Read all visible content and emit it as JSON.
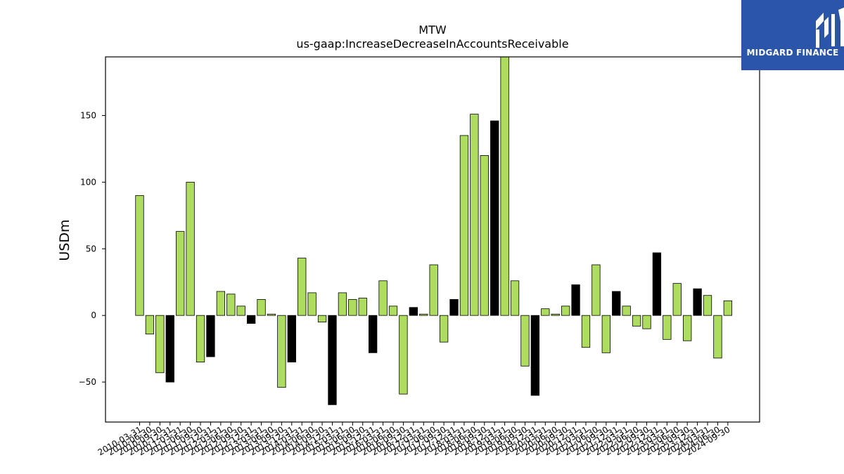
{
  "brand": {
    "name": "MIDGARD FINANCE",
    "logo_icon": "mh-monogram-icon",
    "bg_color": "#2a55a8"
  },
  "chart_data": {
    "type": "bar",
    "title": "MTW",
    "subtitle": "us-gaap:IncreaseDecreaseInAccountsReceivable",
    "xlabel": "",
    "ylabel": "USDm",
    "ylim": [
      -80,
      194
    ],
    "yticks": [
      -50,
      0,
      50,
      100,
      150
    ],
    "colors": {
      "default": "#addc5f",
      "highlight": "#000000"
    },
    "categories": [
      "2010-03-31",
      "2010-06-30",
      "2010-09-30",
      "2010-12-31",
      "2011-03-31",
      "2011-06-30",
      "2011-09-30",
      "2011-12-31",
      "2012-03-31",
      "2012-06-30",
      "2012-09-30",
      "2012-12-31",
      "2013-03-31",
      "2013-06-30",
      "2013-09-30",
      "2013-12-31",
      "2014-03-31",
      "2014-06-30",
      "2014-09-30",
      "2014-12-31",
      "2015-03-31",
      "2015-06-30",
      "2015-09-30",
      "2015-12-31",
      "2016-03-31",
      "2016-06-30",
      "2016-09-30",
      "2016-12-31",
      "2017-03-31",
      "2017-06-30",
      "2017-09-30",
      "2017-12-31",
      "2018-03-31",
      "2018-06-30",
      "2018-09-30",
      "2018-12-31",
      "2019-03-31",
      "2019-06-30",
      "2019-09-30",
      "2019-12-31",
      "2020-03-31",
      "2020-06-30",
      "2020-09-30",
      "2020-12-31",
      "2021-03-31",
      "2021-06-30",
      "2021-09-30",
      "2021-12-31",
      "2022-03-31",
      "2022-06-30",
      "2022-09-30",
      "2022-12-31",
      "2023-03-31",
      "2023-06-30",
      "2023-09-30",
      "2023-12-31",
      "2024-03-31",
      "2024-06-30",
      "2024-09-30"
    ],
    "values": [
      90,
      -14,
      -43,
      -50,
      63,
      100,
      -35,
      -31,
      18,
      16,
      7,
      -6,
      12,
      1,
      -54,
      -35,
      43,
      17,
      -5,
      -67,
      17,
      12,
      13,
      -28,
      26,
      7,
      -59,
      6,
      1,
      38,
      -20,
      12,
      135,
      151,
      120,
      146,
      194,
      26,
      -38,
      -60,
      5,
      1,
      7,
      23,
      -24,
      38,
      -28,
      18,
      7,
      -8,
      -10,
      47,
      -18,
      24,
      -19,
      20,
      15,
      -32,
      11
    ],
    "highlight": [
      false,
      false,
      false,
      true,
      false,
      false,
      false,
      true,
      false,
      false,
      false,
      true,
      false,
      false,
      false,
      true,
      false,
      false,
      false,
      true,
      false,
      false,
      false,
      true,
      false,
      false,
      false,
      true,
      false,
      false,
      false,
      true,
      false,
      false,
      false,
      true,
      false,
      false,
      false,
      true,
      false,
      false,
      false,
      true,
      false,
      false,
      false,
      true,
      false,
      false,
      false,
      true,
      false,
      false,
      false,
      true,
      false,
      false,
      false
    ],
    "grid": false,
    "legend": "none"
  }
}
